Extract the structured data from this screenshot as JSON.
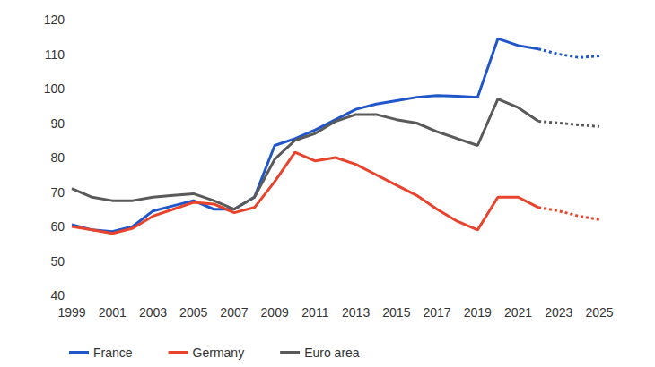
{
  "chart_data": {
    "type": "line",
    "categories": [
      "1999",
      null,
      "2001",
      null,
      "2003",
      null,
      "2005",
      null,
      "2007",
      null,
      "2009",
      null,
      "2011",
      null,
      "2013",
      null,
      "2015",
      null,
      "2017",
      null,
      "2019",
      null,
      "2021",
      null,
      "2023",
      null,
      "2025"
    ],
    "series": [
      {
        "name": "France",
        "color": "#1f56c9",
        "line_style": "solid",
        "values": [
          60.5,
          59,
          58.5,
          60,
          64.5,
          66,
          67.5,
          65,
          65,
          68.5,
          83.5,
          85.5,
          88,
          91,
          94,
          95.5,
          96.5,
          97.5,
          98,
          97.8,
          97.5,
          114.5,
          112.5,
          111.5,
          null,
          null,
          null
        ]
      },
      {
        "name": "France",
        "color": "#1f56c9",
        "line_style": "dotted",
        "values": [
          null,
          null,
          null,
          null,
          null,
          null,
          null,
          null,
          null,
          null,
          null,
          null,
          null,
          null,
          null,
          null,
          null,
          null,
          null,
          null,
          null,
          null,
          null,
          111.5,
          110,
          109,
          109.5
        ]
      },
      {
        "name": "Germany",
        "color": "#e8432c",
        "line_style": "solid",
        "values": [
          60,
          59,
          58,
          59.5,
          63,
          65,
          67,
          66.5,
          64,
          65.5,
          73,
          81.5,
          79,
          80,
          78,
          75,
          72,
          69,
          65,
          61.5,
          59,
          68.5,
          68.5,
          65.5,
          null,
          null,
          null
        ]
      },
      {
        "name": "Germany",
        "color": "#e8432c",
        "line_style": "dotted",
        "values": [
          null,
          null,
          null,
          null,
          null,
          null,
          null,
          null,
          null,
          null,
          null,
          null,
          null,
          null,
          null,
          null,
          null,
          null,
          null,
          null,
          null,
          null,
          null,
          65.5,
          64.5,
          63,
          62
        ]
      },
      {
        "name": "Euro area",
        "color": "#5a5a5a",
        "line_style": "solid",
        "values": [
          71,
          68.5,
          67.5,
          67.5,
          68.5,
          69,
          69.5,
          67.5,
          65,
          68.5,
          79.5,
          85,
          87,
          90.5,
          92.5,
          92.5,
          91,
          90,
          87.5,
          85.5,
          83.5,
          97,
          94.5,
          90.5,
          null,
          null,
          null
        ]
      },
      {
        "name": "Euro area",
        "color": "#5a5a5a",
        "line_style": "dotted",
        "values": [
          null,
          null,
          null,
          null,
          null,
          null,
          null,
          null,
          null,
          null,
          null,
          null,
          null,
          null,
          null,
          null,
          null,
          null,
          null,
          null,
          null,
          null,
          null,
          90.5,
          90,
          89.5,
          89
        ]
      }
    ],
    "ylim": [
      40,
      120
    ],
    "yticks": [
      40,
      50,
      60,
      70,
      80,
      90,
      100,
      110,
      120
    ],
    "grid": false,
    "legend": "bottom"
  }
}
